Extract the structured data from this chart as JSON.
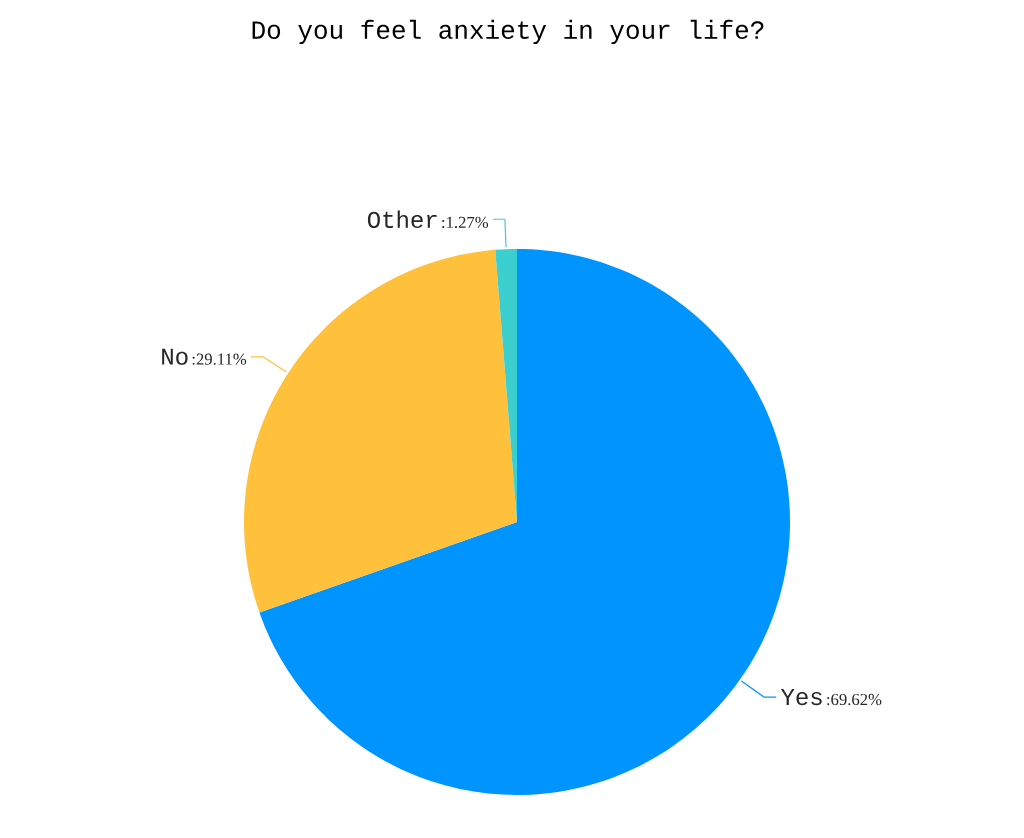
{
  "chart_data": {
    "type": "pie",
    "title": "Do you feel anxiety in your life?",
    "categories": [
      "Yes",
      "No",
      "Other"
    ],
    "values": [
      69.62,
      29.11,
      1.27
    ],
    "colors": [
      "#0094ff",
      "#ffc13b",
      "#3ccfcf"
    ],
    "value_labels": [
      ":69.62%",
      ":29.11%",
      ":1.27%"
    ]
  }
}
